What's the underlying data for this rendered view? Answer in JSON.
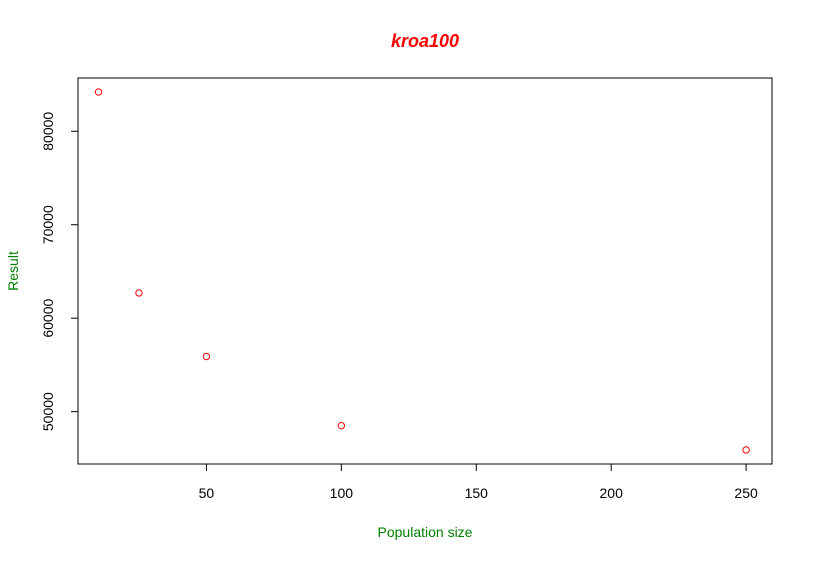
{
  "chart_data": {
    "type": "scatter",
    "title": "kroa100",
    "xlabel": "Population size",
    "ylabel": "Result",
    "x": [
      10,
      25,
      50,
      100,
      250
    ],
    "y": [
      84200,
      62700,
      55900,
      48500,
      45900
    ],
    "xlim": [
      2.4,
      259.6
    ],
    "ylim": [
      44400,
      85700
    ],
    "x_ticks": [
      50,
      100,
      150,
      200,
      250
    ],
    "y_ticks": [
      50000,
      60000,
      70000,
      80000
    ],
    "x_tick_labels": [
      "50",
      "100",
      "150",
      "200",
      "250"
    ],
    "y_tick_labels": [
      "50000",
      "60000",
      "70000",
      "80000"
    ],
    "grid": false,
    "colors": {
      "title": "#ff0000",
      "axis_labels": "#008000",
      "points": "#ff0000",
      "axes": "#000000"
    }
  }
}
